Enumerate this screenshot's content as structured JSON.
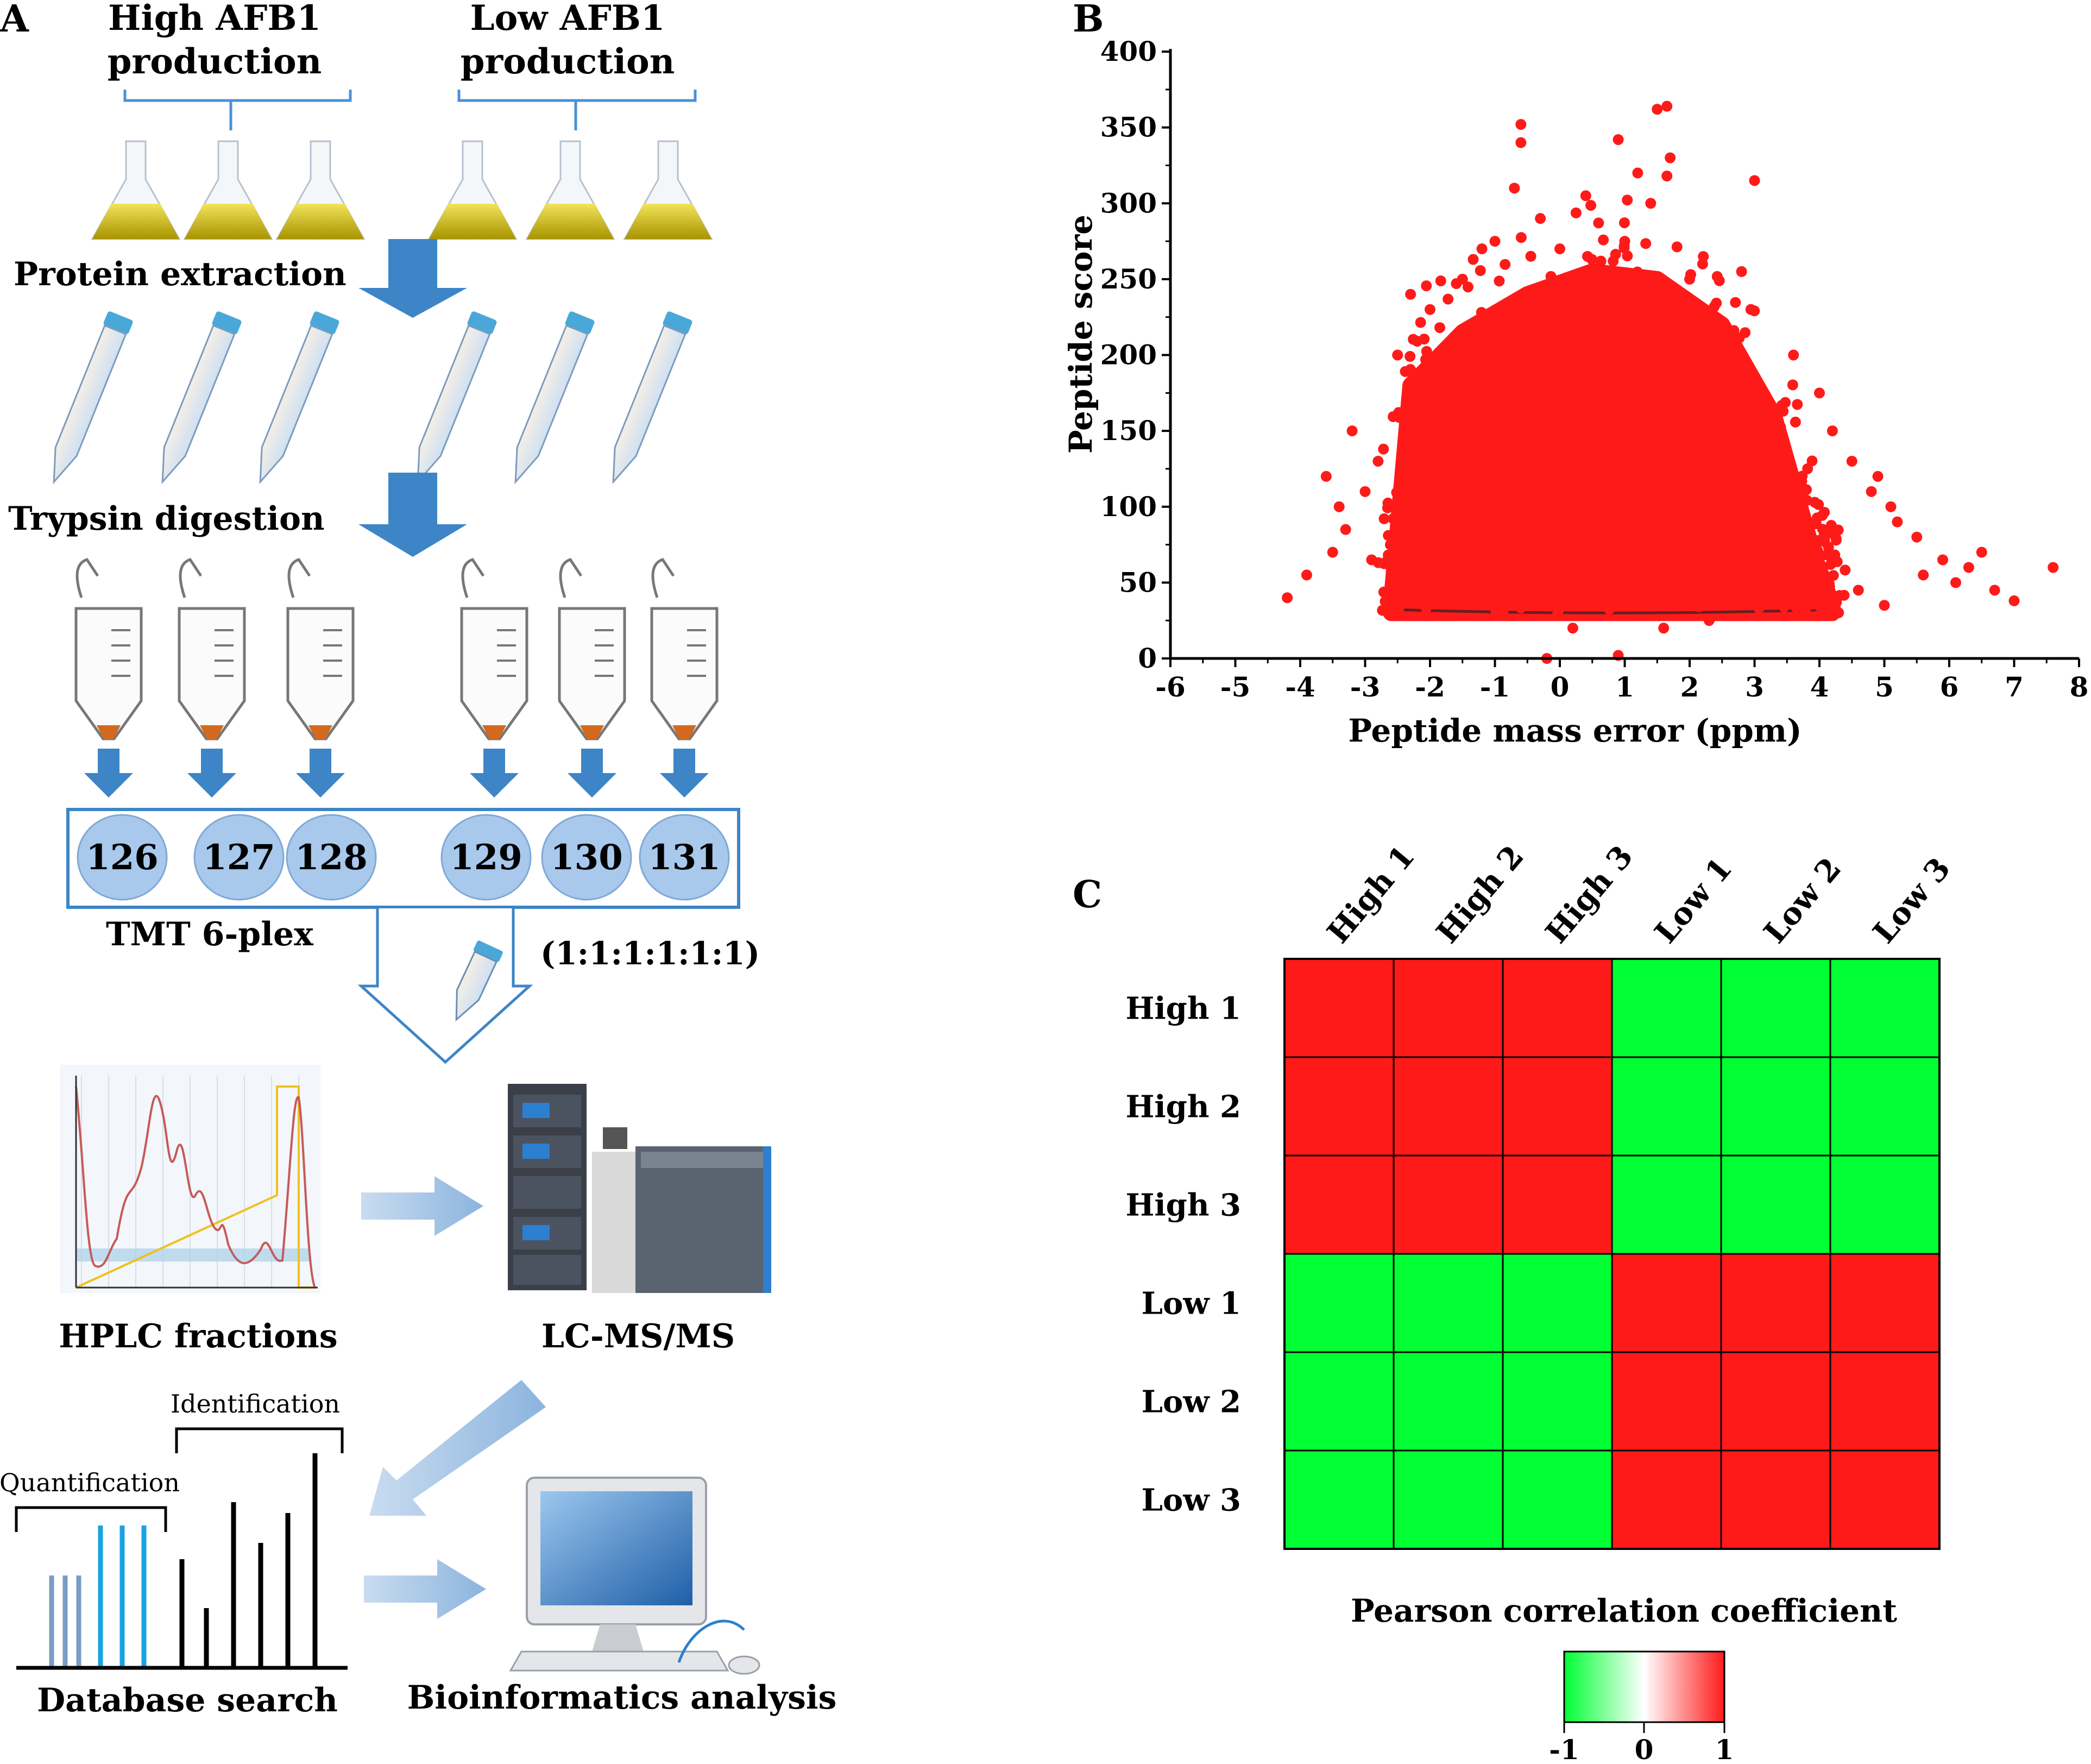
{
  "panels": {
    "a": "A",
    "b": "B",
    "c": "C"
  },
  "panel_a": {
    "groups": [
      "High AFB1 production",
      "Low AFB1 production"
    ],
    "group_lines": [
      [
        "High AFB1",
        "production"
      ],
      [
        "Low AFB1",
        "production"
      ]
    ],
    "steps": {
      "extraction": "Protein extraction",
      "digestion": "Trypsin  digestion",
      "tmt": "TMT  6-plex",
      "ratio": "(1:1:1:1:1:1)",
      "hplc": "HPLC fractions",
      "lcms": "LC-MS/MS",
      "identification": "Identification",
      "quantification": "Quantification",
      "database": "Database search",
      "bioinformatics": "Bioinformatics analysis"
    },
    "tmt_labels": [
      "126",
      "127",
      "128",
      "129",
      "130",
      "131"
    ],
    "colors": {
      "arrow": "#3d85c6",
      "flask": "#d8c21a",
      "label_fill": "#a8c8ec",
      "tube_cap": "#4aa8d8"
    }
  },
  "chart_data": [
    {
      "type": "scatter",
      "xlabel": "Peptide mass error (ppm)",
      "ylabel": "Peptide score",
      "xlim": [
        -6,
        8
      ],
      "ylim": [
        0,
        400
      ],
      "xticks": [
        "-6",
        "-5",
        "-4",
        "-3",
        "-2",
        "-1",
        "0",
        "1",
        "2",
        "3",
        "4",
        "5",
        "6",
        "7",
        "8"
      ],
      "yticks": [
        "0",
        "50",
        "100",
        "150",
        "200",
        "250",
        "300",
        "350",
        "400"
      ],
      "color": "#ff1a1a",
      "cloud_envelope": [
        [
          -2.6,
          35
        ],
        [
          -2.3,
          180
        ],
        [
          -1.5,
          215
        ],
        [
          -0.5,
          240
        ],
        [
          0.5,
          255
        ],
        [
          1.5,
          250
        ],
        [
          2.5,
          220
        ],
        [
          3.3,
          160
        ],
        [
          3.9,
          70
        ],
        [
          4.2,
          35
        ]
      ],
      "outliers": [
        [
          -0.6,
          352
        ],
        [
          -0.6,
          340
        ],
        [
          0.9,
          342
        ],
        [
          1.5,
          362
        ],
        [
          1.65,
          364
        ],
        [
          1.7,
          330
        ],
        [
          1.65,
          318
        ],
        [
          3.0,
          315
        ],
        [
          -0.7,
          310
        ],
        [
          0.4,
          305
        ],
        [
          1.2,
          320
        ],
        [
          1.4,
          300
        ],
        [
          -1.2,
          270
        ],
        [
          -2.3,
          240
        ],
        [
          -2.5,
          200
        ],
        [
          -3.2,
          150
        ],
        [
          -3.6,
          120
        ],
        [
          -3.4,
          100
        ],
        [
          -4.2,
          40
        ],
        [
          -3.9,
          55
        ],
        [
          -2.9,
          65
        ],
        [
          4.2,
          150
        ],
        [
          4.5,
          130
        ],
        [
          4.8,
          110
        ],
        [
          5.1,
          100
        ],
        [
          5.5,
          80
        ],
        [
          5.9,
          65
        ],
        [
          6.3,
          60
        ],
        [
          6.5,
          70
        ],
        [
          6.7,
          45
        ],
        [
          7.0,
          38
        ],
        [
          7.6,
          60
        ],
        [
          5.2,
          90
        ],
        [
          4.0,
          175
        ],
        [
          3.6,
          200
        ],
        [
          2.8,
          255
        ],
        [
          2.2,
          260
        ],
        [
          -0.3,
          290
        ],
        [
          -1.0,
          275
        ],
        [
          -2.0,
          230
        ],
        [
          -0.2,
          0
        ],
        [
          0.9,
          2
        ],
        [
          0.2,
          20
        ],
        [
          1.6,
          20
        ],
        [
          2.3,
          25
        ],
        [
          4.6,
          45
        ],
        [
          5.0,
          35
        ],
        [
          6.1,
          50
        ],
        [
          5.6,
          55
        ],
        [
          4.9,
          120
        ],
        [
          -3.0,
          110
        ],
        [
          -2.8,
          130
        ],
        [
          -3.3,
          85
        ],
        [
          -3.5,
          70
        ],
        [
          0.0,
          270
        ],
        [
          1.0,
          275
        ],
        [
          2.0,
          250
        ],
        [
          -1.5,
          250
        ]
      ]
    },
    {
      "type": "heatmap",
      "title": "Pearson correlation coefficient",
      "columns": [
        "High 1",
        "High 2",
        "High 3",
        "Low 1",
        "Low 2",
        "Low 3"
      ],
      "rows": [
        "High 1",
        "High 2",
        "High 3",
        "Low 1",
        "Low 2",
        "Low 3"
      ],
      "values": [
        [
          1,
          1,
          1,
          -1,
          -1,
          -1
        ],
        [
          1,
          1,
          1,
          -1,
          -1,
          -1
        ],
        [
          1,
          1,
          1,
          -1,
          -1,
          -1
        ],
        [
          -1,
          -1,
          -1,
          1,
          1,
          1
        ],
        [
          -1,
          -1,
          -1,
          1,
          1,
          1
        ],
        [
          -1,
          -1,
          -1,
          1,
          1,
          1
        ]
      ],
      "scale_ticks": [
        "-1",
        "0",
        "1"
      ],
      "colors": {
        "low": "#00ff33",
        "mid": "#ffffff",
        "high": "#ff1a1a"
      }
    }
  ]
}
